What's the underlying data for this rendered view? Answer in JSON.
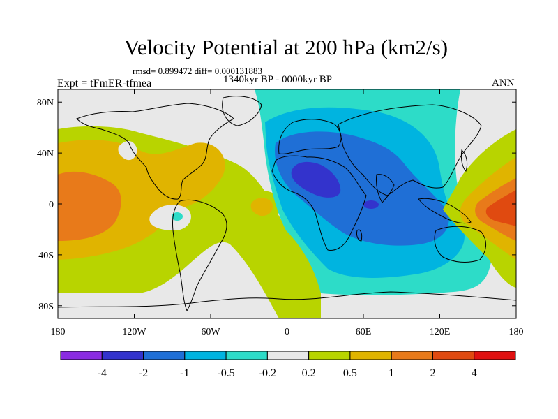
{
  "chart_data": {
    "type": "heatmap",
    "title": "Velocity Potential at 200 hPa (km2/s)",
    "stats": "rmsd= 0.899472 diff= 0.000131883",
    "subtitle": "1340kyr BP - 0000kyr BP",
    "left_label": "Expt = tFmER-tfmea",
    "right_label": "ANN",
    "x_ticks": [
      "180",
      "120W",
      "60W",
      "0",
      "60E",
      "120E",
      "180"
    ],
    "x_tick_values": [
      -180,
      -120,
      -60,
      0,
      60,
      120,
      180
    ],
    "y_ticks": [
      "80N",
      "40N",
      "0",
      "40S",
      "80S"
    ],
    "y_tick_values": [
      80,
      40,
      0,
      -40,
      -80
    ],
    "xlim": [
      -180,
      180
    ],
    "ylim": [
      -90,
      90
    ],
    "colorbar": {
      "levels": [
        "-4",
        "-2",
        "-1",
        "-0.5",
        "-0.2",
        "0.2",
        "0.5",
        "1",
        "2",
        "4"
      ],
      "colors": [
        "#8a2be2",
        "#3333cc",
        "#1f6fd6",
        "#00b4e0",
        "#2ddcc8",
        "#e8e8e8",
        "#b8d400",
        "#e0b400",
        "#e87a1a",
        "#e04a10",
        "#e01010"
      ]
    }
  }
}
